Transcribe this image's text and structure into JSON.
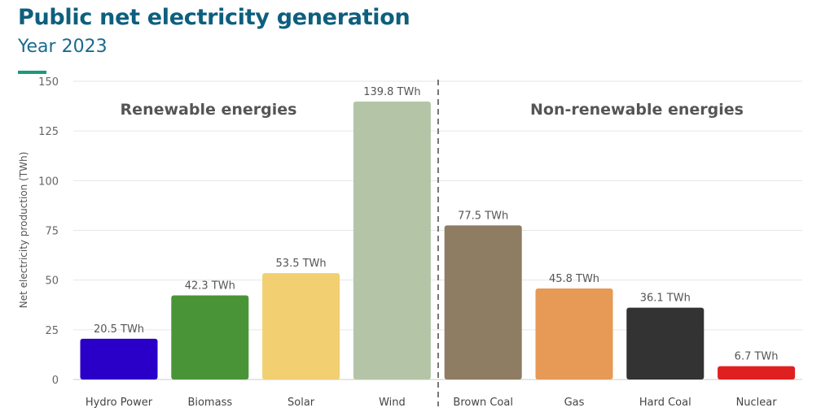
{
  "title": "Public net electricity generation",
  "subtitle": "Year 2023",
  "chart_data": {
    "type": "bar",
    "ylabel": "Net electricity production (TWh)",
    "ylim": [
      0,
      150
    ],
    "yticks": [
      0,
      25,
      50,
      75,
      100,
      125,
      150
    ],
    "grid": true,
    "categories": [
      "Hydro Power",
      "Biomass",
      "Solar",
      "Wind",
      "Brown Coal",
      "Gas",
      "Hard Coal",
      "Nuclear"
    ],
    "values": [
      20.5,
      42.3,
      53.5,
      139.8,
      77.5,
      45.8,
      36.1,
      6.7
    ],
    "data_labels": [
      "20.5 TWh",
      "42.3 TWh",
      "53.5 TWh",
      "139.8 TWh",
      "77.5 TWh",
      "45.8 TWh",
      "36.1 TWh",
      "6.7 TWh"
    ],
    "colors": [
      "#2a00c8",
      "#4a9438",
      "#f2cf70",
      "#b3c5a6",
      "#8e7c63",
      "#e69a55",
      "#333333",
      "#e02020"
    ],
    "groups": [
      {
        "label": "Renewable energies"
      },
      {
        "label": "Non-renewable energies"
      }
    ]
  }
}
